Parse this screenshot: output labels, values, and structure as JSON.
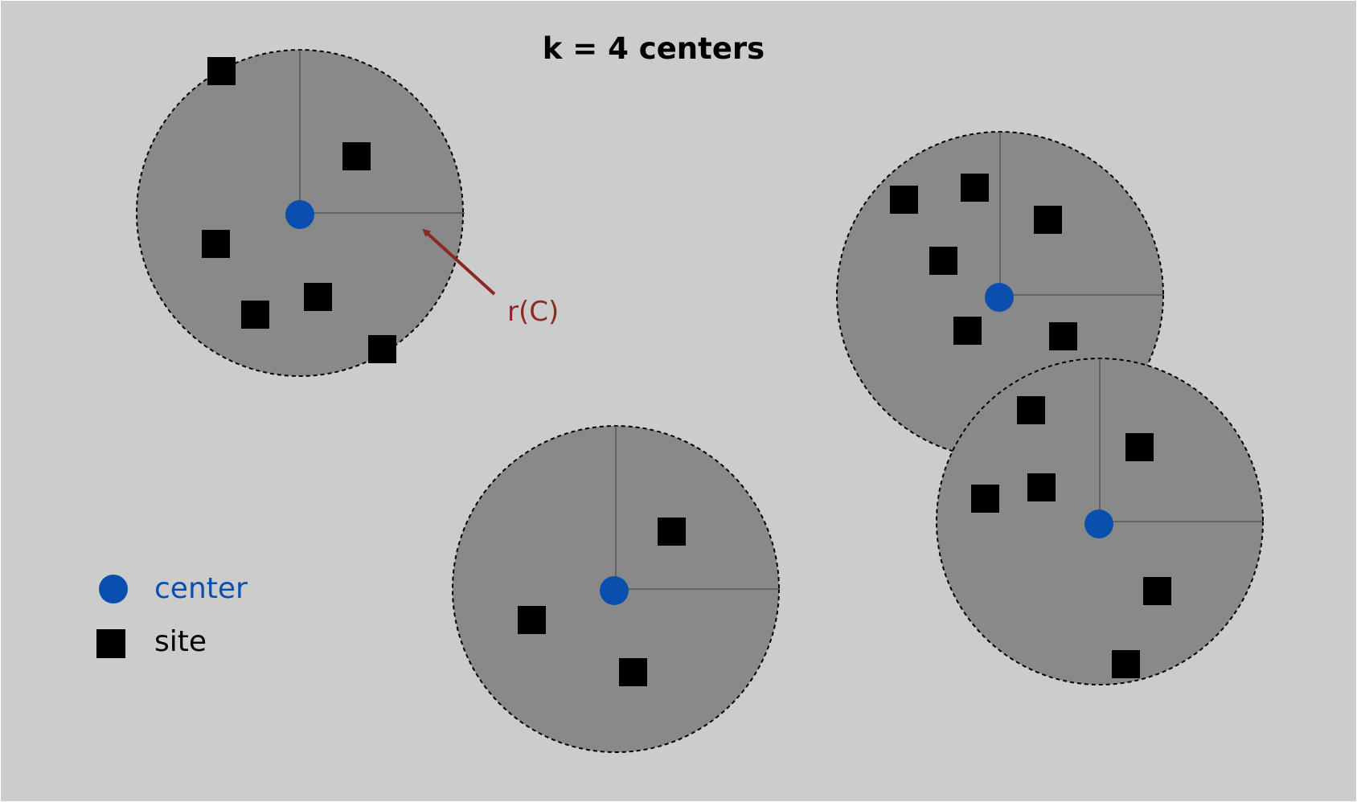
{
  "title": "k = 4 centers",
  "radius_label": "r(C)",
  "legend": {
    "center_label": "center",
    "site_label": "site"
  },
  "colors": {
    "background": "#cccccc",
    "disk_fill": "#898989",
    "center": "#0a4fad",
    "site": "#000000",
    "annotation": "#8b2a24",
    "title": "#000000"
  }
}
